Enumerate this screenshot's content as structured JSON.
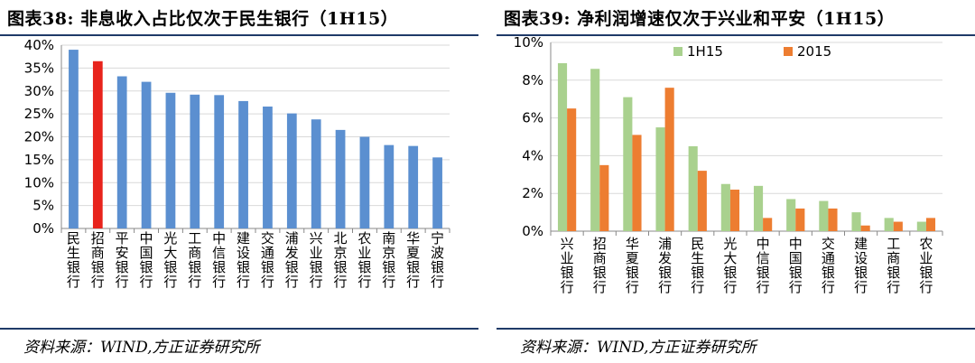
{
  "left": {
    "title": "图表38:  非息收入占比仅次于民生银行（1H15）",
    "source": "资料来源：WIND,方正证券研究所",
    "chart_data": {
      "type": "bar",
      "categories": [
        "民生银行",
        "招商银行",
        "平安银行",
        "中国银行",
        "光大银行",
        "工商银行",
        "中信银行",
        "建设银行",
        "交通银行",
        "浦发银行",
        "兴业银行",
        "北京银行",
        "农业银行",
        "南京银行",
        "华夏银行",
        "宁波银行"
      ],
      "values": [
        39.0,
        36.5,
        33.2,
        32.0,
        29.6,
        29.2,
        29.1,
        27.8,
        26.6,
        25.1,
        23.8,
        21.5,
        20.0,
        18.2,
        18.0,
        15.5
      ],
      "highlight_index": 1,
      "ylim": [
        0,
        40
      ],
      "yticks": [
        "0%",
        "5%",
        "10%",
        "15%",
        "20%",
        "25%",
        "30%",
        "35%",
        "40%"
      ],
      "colors": {
        "bar": "#5b8fd0",
        "highlight": "#e8231c",
        "grid": "#d9d9d9",
        "axis": "#888888"
      },
      "grid": true
    }
  },
  "right": {
    "title": "图表39:  净利润增速仅次于兴业和平安（1H15）",
    "source": "资料来源：WIND,方正证券研究所",
    "chart_data": {
      "type": "bar",
      "categories": [
        "兴业银行",
        "招商银行",
        "华夏银行",
        "浦发银行",
        "民生银行",
        "光大银行",
        "中信银行",
        "中国银行",
        "交通银行",
        "建设银行",
        "工商银行",
        "农业银行"
      ],
      "series": [
        {
          "name": "1H15",
          "values": [
            8.9,
            8.6,
            7.1,
            5.5,
            4.5,
            2.5,
            2.4,
            1.7,
            1.6,
            1.0,
            0.7,
            0.5
          ],
          "color": "#a9d18e"
        },
        {
          "name": "2015",
          "values": [
            6.5,
            3.5,
            5.1,
            7.6,
            3.2,
            2.2,
            0.7,
            1.2,
            1.2,
            0.3,
            0.5,
            0.7
          ],
          "color": "#ed7d31"
        }
      ],
      "ylim": [
        0,
        10
      ],
      "yticks": [
        "0%",
        "2%",
        "4%",
        "6%",
        "8%",
        "10%"
      ],
      "legend_position": "top-left",
      "colors": {
        "grid": "#d9d9d9",
        "axis": "#888888"
      },
      "grid": true
    }
  }
}
